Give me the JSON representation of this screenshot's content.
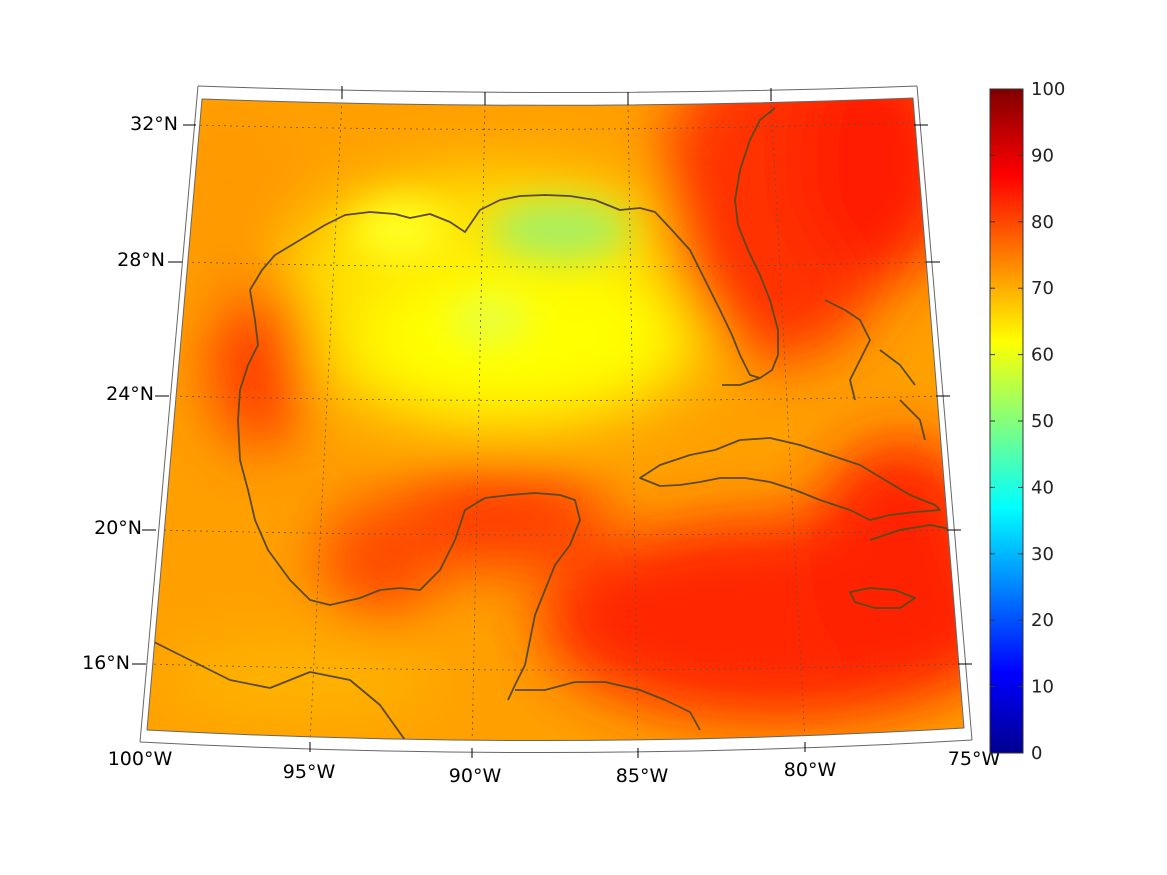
{
  "map": {
    "projection": "conic",
    "lon_range": [
      -100,
      -75
    ],
    "lat_range": [
      14,
      33
    ],
    "colormap": "jet",
    "coastline_color": "#5a4a1a",
    "graticule_style": "dotted"
  },
  "lat_labels": [
    "32°N",
    "28°N",
    "24°N",
    "20°N",
    "16°N"
  ],
  "lon_labels": [
    "100°W",
    "95°W",
    "90°W",
    "85°W",
    "80°W",
    "75°W"
  ],
  "colorbar": {
    "ticks": [
      "0",
      "10",
      "20",
      "30",
      "40",
      "50",
      "60",
      "70",
      "80",
      "90",
      "100"
    ],
    "range": [
      0,
      100
    ],
    "colors": [
      "#00008f",
      "#0000ff",
      "#00ffff",
      "#ffff00",
      "#ff0000",
      "#800000"
    ]
  },
  "field_regions": {
    "base_value": 72,
    "cool_areas": [
      "north-central Gulf (values 50-62)",
      "central Gulf (values 60-66)"
    ],
    "warm_areas": [
      "western Caribbean (values 82-88)",
      "east of Florida (values 80-88)",
      "Bay of Campeche (values 78-84)"
    ]
  }
}
